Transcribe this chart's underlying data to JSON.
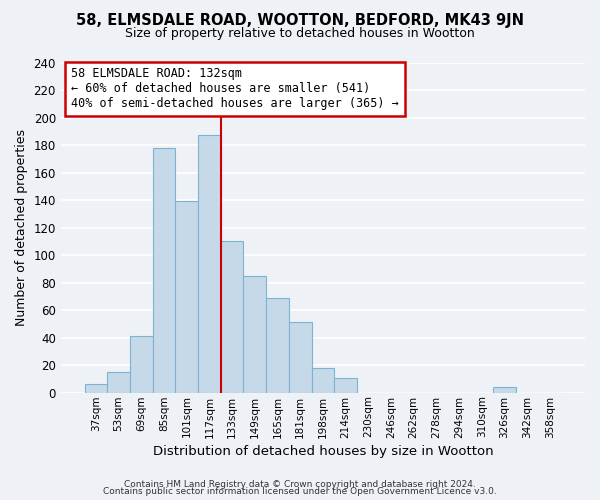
{
  "title1": "58, ELMSDALE ROAD, WOOTTON, BEDFORD, MK43 9JN",
  "title2": "Size of property relative to detached houses in Wootton",
  "xlabel": "Distribution of detached houses by size in Wootton",
  "ylabel": "Number of detached properties",
  "footer1": "Contains HM Land Registry data © Crown copyright and database right 2024.",
  "footer2": "Contains public sector information licensed under the Open Government Licence v3.0.",
  "bin_labels": [
    "37sqm",
    "53sqm",
    "69sqm",
    "85sqm",
    "101sqm",
    "117sqm",
    "133sqm",
    "149sqm",
    "165sqm",
    "181sqm",
    "198sqm",
    "214sqm",
    "230sqm",
    "246sqm",
    "262sqm",
    "278sqm",
    "294sqm",
    "310sqm",
    "326sqm",
    "342sqm",
    "358sqm"
  ],
  "bar_heights": [
    6,
    15,
    41,
    178,
    139,
    187,
    110,
    85,
    69,
    51,
    18,
    11,
    0,
    0,
    0,
    0,
    0,
    0,
    4,
    0,
    0
  ],
  "bar_color": "#c6d9e8",
  "bar_edge_color": "#7db3d0",
  "vline_index": 6,
  "vline_color": "#cc0000",
  "annotation_title": "58 ELMSDALE ROAD: 132sqm",
  "annotation_line1": "← 60% of detached houses are smaller (541)",
  "annotation_line2": "40% of semi-detached houses are larger (365) →",
  "annotation_box_color": "#ffffff",
  "annotation_box_edge": "#cc0000",
  "ylim": [
    0,
    240
  ],
  "yticks": [
    0,
    20,
    40,
    60,
    80,
    100,
    120,
    140,
    160,
    180,
    200,
    220,
    240
  ],
  "background_color": "#eef2f7",
  "grid_color": "#ffffff",
  "title1_fontsize": 10.5,
  "title2_fontsize": 9
}
